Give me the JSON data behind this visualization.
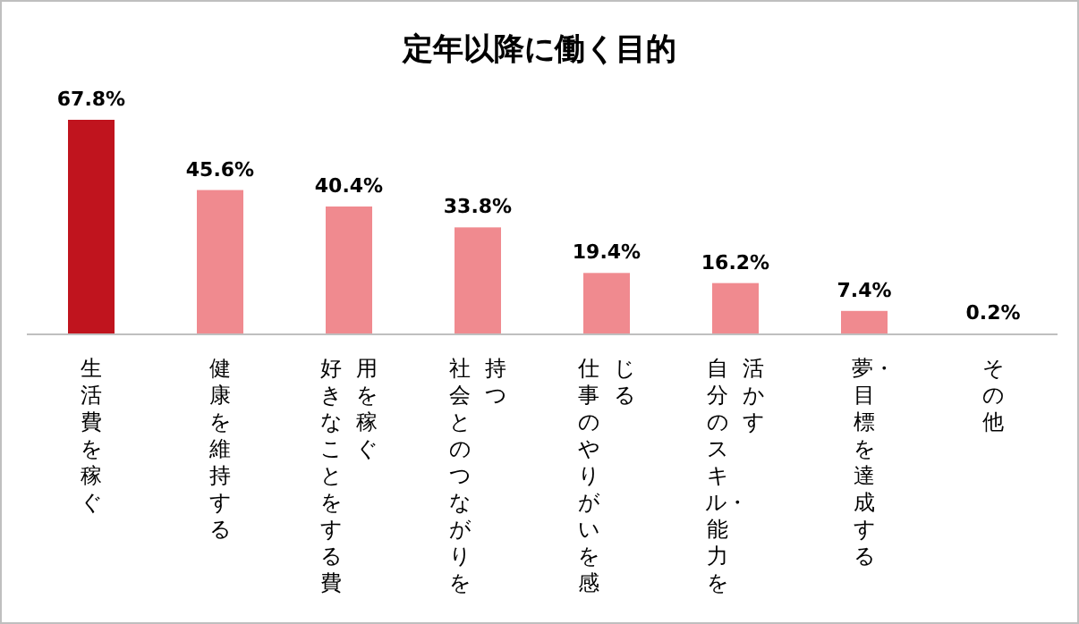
{
  "chart_data": {
    "type": "bar",
    "title": "定年以降に働く目的",
    "categories": [
      "生活費を稼ぐ",
      "健康を維持する",
      "好きなことをする費用を稼ぐ",
      "社会とのつながりを持つ",
      "仕事のやりがいを感じる",
      "自分のスキル・能力を活かす",
      "夢・目標を達成する",
      "その他"
    ],
    "values": [
      67.8,
      45.6,
      40.4,
      33.8,
      19.4,
      16.2,
      7.4,
      0.2
    ],
    "colors": [
      "#c0141e",
      "#f08a8f",
      "#f08a8f",
      "#f08a8f",
      "#f08a8f",
      "#f08a8f",
      "#f08a8f",
      "#f08a8f"
    ],
    "value_labels": [
      "67.8%",
      "45.6%",
      "40.4%",
      "33.8%",
      "19.4%",
      "16.2%",
      "7.4%",
      "0.2%"
    ]
  }
}
